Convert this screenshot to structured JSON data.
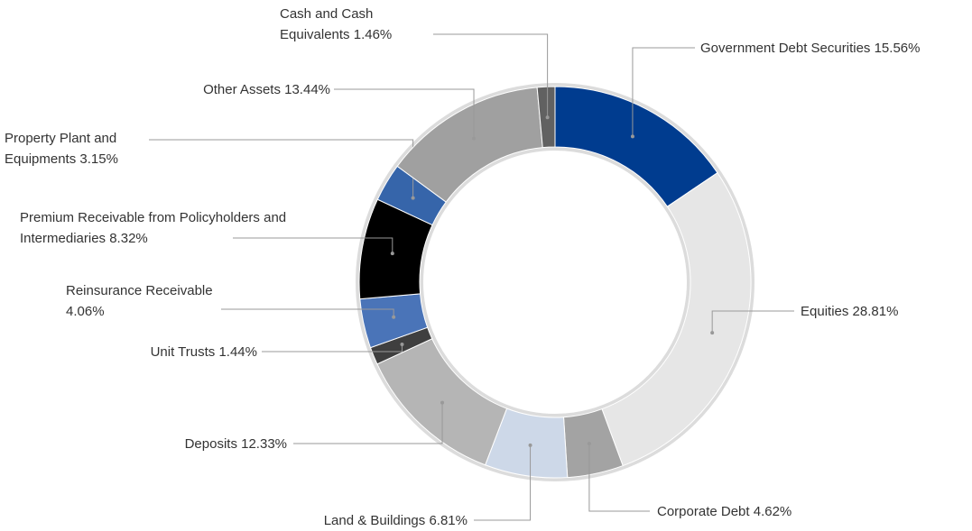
{
  "chart_data": {
    "type": "donut",
    "categories": [
      "Government Debt Securities",
      "Equities",
      "Corporate Debt",
      "Land & Buildings",
      "Deposits",
      "Unit Trusts",
      "Reinsurance Receivable",
      "Premium Receivable from Policyholders and Intermediaries",
      "Property Plant and Equipments",
      "Other Assets",
      "Cash and Cash Equivalents"
    ],
    "values": [
      15.56,
      28.81,
      4.62,
      6.81,
      12.33,
      1.44,
      4.06,
      8.32,
      3.15,
      13.44,
      1.46
    ],
    "value_labels": [
      "15.56%",
      "28.81%",
      "4.62%",
      "6.81%",
      "12.33%",
      "1.44%",
      "4.06%",
      "8.32%",
      "3.15%",
      "13.44%",
      "1.46%"
    ],
    "colors": [
      "#003c8f",
      "#e6e6e6",
      "#a3a3a3",
      "#cdd8e8",
      "#b5b5b5",
      "#3f3f3f",
      "#4a74b8",
      "#000000",
      "#3665aa",
      "#a0a0a0",
      "#616161"
    ]
  }
}
